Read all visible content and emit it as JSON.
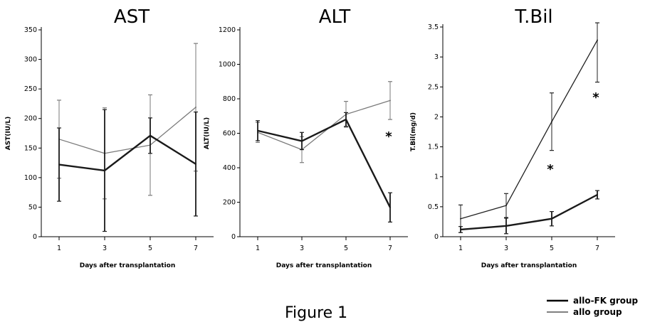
{
  "chart_data": [
    {
      "type": "line",
      "title": "AST",
      "ylabel": "AST(IU/L)",
      "xlabel": "Days after transplantation",
      "x": [
        1,
        3,
        5,
        7
      ],
      "x_ticks": [
        "1",
        "3",
        "5",
        "7"
      ],
      "ylim": [
        0,
        350
      ],
      "y_ticks": [
        "0",
        "50",
        "100",
        "150",
        "200",
        "250",
        "300",
        "350"
      ],
      "y_tick_values": [
        0,
        50,
        100,
        150,
        200,
        250,
        300,
        350
      ],
      "series": [
        {
          "name": "allo-FK group",
          "values": [
            122,
            112,
            171,
            123
          ],
          "error": [
            62,
            103,
            30,
            88
          ]
        },
        {
          "name": "allo group",
          "values": [
            165,
            141,
            155,
            219
          ],
          "error": [
            66,
            77,
            85,
            108
          ]
        }
      ],
      "annotations": []
    },
    {
      "type": "line",
      "title": "ALT",
      "ylabel": "ALT(IU/L)",
      "xlabel": "Days after transplantation",
      "x": [
        1,
        3,
        5,
        7
      ],
      "x_ticks": [
        "1",
        "3",
        "5",
        "7"
      ],
      "ylim": [
        0,
        1200
      ],
      "y_ticks": [
        "0",
        "200",
        "400",
        "600",
        "800",
        "1000",
        "1200"
      ],
      "y_tick_values": [
        0,
        200,
        400,
        600,
        800,
        1000,
        1200
      ],
      "series": [
        {
          "name": "allo-FK group",
          "values": [
            615,
            555,
            680,
            170
          ],
          "error": [
            58,
            50,
            40,
            85
          ]
        },
        {
          "name": "allo group",
          "values": [
            605,
            505,
            710,
            790
          ],
          "error": [
            58,
            75,
            75,
            110
          ]
        }
      ],
      "annotations": [
        {
          "text": "*",
          "x": 7,
          "y": 590
        }
      ]
    },
    {
      "type": "line",
      "title": "T.Bil",
      "ylabel": "T.Bil(mg/d)",
      "xlabel": "Days after transplantation",
      "x": [
        1,
        3,
        5,
        7
      ],
      "x_ticks": [
        "1",
        "3",
        "5",
        "7"
      ],
      "ylim": [
        0,
        3.5
      ],
      "y_ticks": [
        "0",
        "0.5",
        "1",
        "1.5",
        "2",
        "2.5",
        "3",
        "3.5"
      ],
      "y_tick_values": [
        0,
        0.5,
        1,
        1.5,
        2,
        2.5,
        3,
        3.5
      ],
      "series": [
        {
          "name": "allo-FK group",
          "values": [
            0.12,
            0.18,
            0.3,
            0.7
          ],
          "error": [
            0.05,
            0.13,
            0.12,
            0.07
          ]
        },
        {
          "name": "allo group",
          "values": [
            0.3,
            0.52,
            1.92,
            3.28
          ],
          "error": [
            0.23,
            0.2,
            0.48,
            0.7
          ]
        }
      ],
      "annotations": [
        {
          "text": "*",
          "x": 5,
          "y": 1.15
        },
        {
          "text": "*",
          "x": 7,
          "y": 2.35
        }
      ]
    }
  ],
  "legend": [
    {
      "label": "allo-FK group",
      "style": "thick"
    },
    {
      "label": "allo group",
      "style": "thin"
    }
  ],
  "caption": "Figure 1",
  "colors": {
    "allo_fk": "#1a1a1a",
    "allo_ast_alt": "#7a7a7a",
    "allo_tbil": "#222222",
    "axis": "#000000"
  }
}
